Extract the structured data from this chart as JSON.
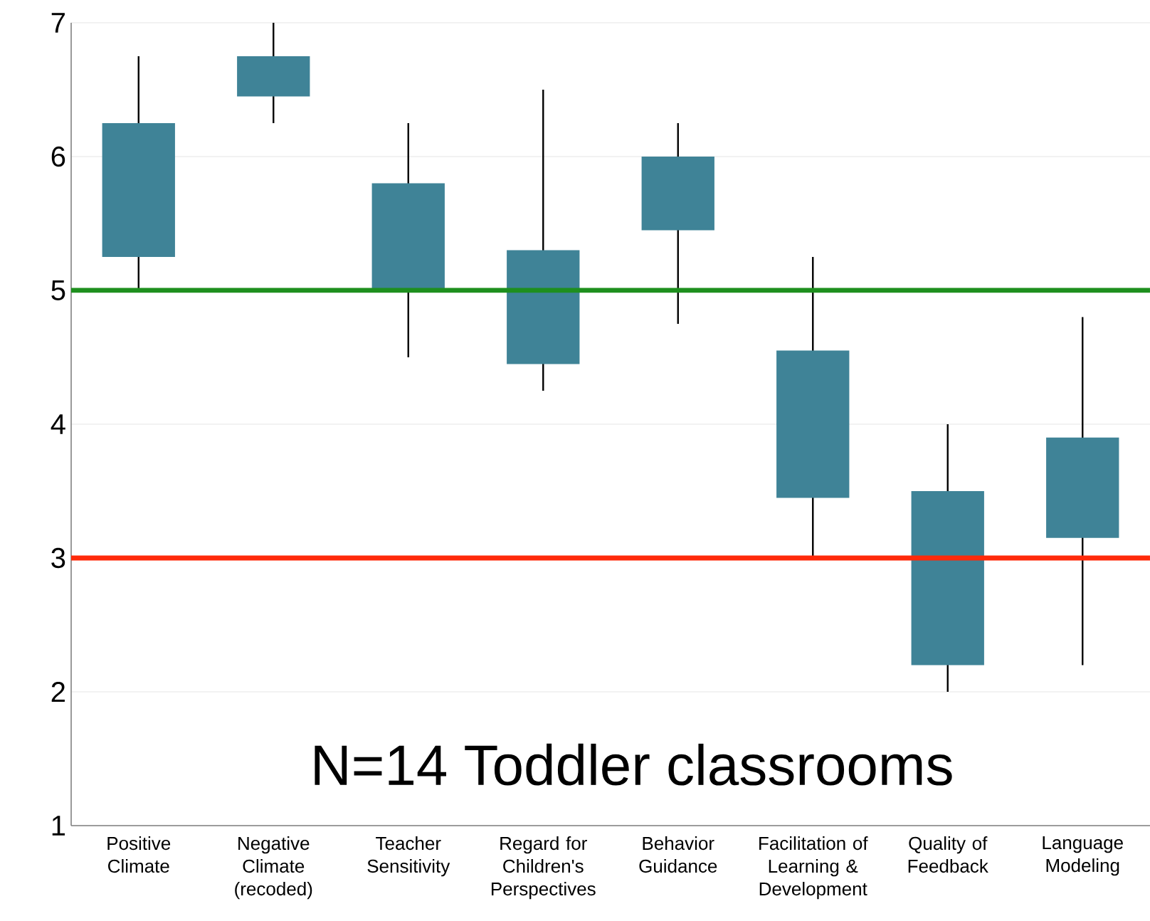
{
  "chart_data": {
    "type": "candlestick",
    "categories": [
      "Positive Climate",
      "Negative Climate (recoded)",
      "Teacher Sensitivity",
      "Regard for Children's Perspectives",
      "Behavior Guidance",
      "Facilitation of Learning & Development",
      "Quality of Feedback",
      "Language Modeling"
    ],
    "ohlc": [
      [
        5.25,
        6.75,
        5.0,
        6.25
      ],
      [
        6.45,
        7.0,
        6.25,
        6.75
      ],
      [
        5.0,
        6.25,
        4.5,
        5.8
      ],
      [
        4.45,
        6.5,
        4.25,
        5.3
      ],
      [
        5.45,
        6.25,
        4.75,
        6.0
      ],
      [
        3.45,
        5.25,
        3.0,
        4.55
      ],
      [
        2.2,
        4.0,
        2.0,
        3.5
      ],
      [
        3.15,
        4.8,
        2.2,
        3.9
      ]
    ],
    "color": "#3f8397",
    "ylim": [
      1,
      7
    ],
    "yticks": [
      1,
      2,
      3,
      4,
      5,
      6,
      7
    ],
    "grid": "y",
    "ref_lines": [
      {
        "axis": "y",
        "value": 5,
        "color": "#1e8f1e"
      },
      {
        "axis": "y",
        "value": 3,
        "color": "#ff2a0a"
      }
    ],
    "annotations": [
      "N=14 Toddler classrooms"
    ]
  }
}
